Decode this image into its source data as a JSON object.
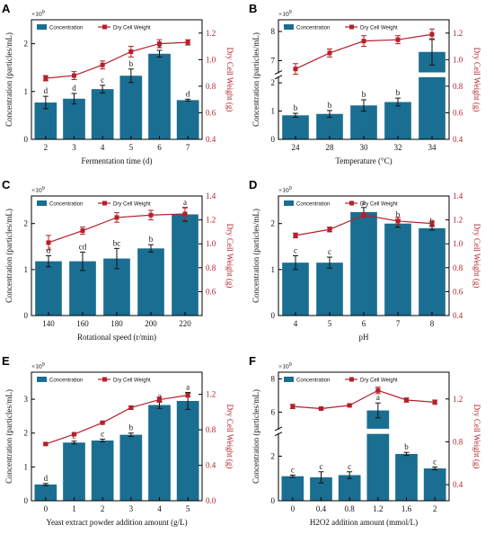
{
  "legend": {
    "bar": "Concentration",
    "line": "Dry Cell Weight"
  },
  "colors": {
    "bar": "#1a6e91",
    "line": "#b5202a",
    "axis": "#000000"
  },
  "axes_common": {
    "ylabel_left": "Concentration (particles/mL)",
    "ylabel_right": "Dry Cell Weight (g)",
    "exponent": "×10",
    "exponent_power": "9"
  },
  "chart_data": [
    {
      "panel": "A",
      "type": "bar",
      "xlabel": "Fermentation time (d)",
      "categories": [
        "2",
        "3",
        "4",
        "5",
        "6",
        "7"
      ],
      "bar_values": [
        0.77,
        0.85,
        1.05,
        1.33,
        1.79,
        0.82
      ],
      "bar_errors": [
        0.13,
        0.11,
        0.08,
        0.14,
        0.07,
        0.02
      ],
      "letters": [
        "d",
        "d",
        "c",
        "b",
        "a",
        "d"
      ],
      "line_values": [
        0.86,
        0.88,
        0.96,
        1.06,
        1.12,
        1.13
      ],
      "line_errors": [
        0.02,
        0.03,
        0.03,
        0.04,
        0.03,
        0.02
      ],
      "ylim_left": [
        0,
        2.5
      ],
      "yticks_left": [
        "0",
        "1",
        "2"
      ],
      "ytick_vals_left": [
        0,
        1,
        2
      ],
      "ylim_right": [
        0.4,
        1.3
      ],
      "yticks_right": [
        "0.4",
        "0.6",
        "0.8",
        "1.0",
        "1.2"
      ],
      "ytick_vals_right": [
        0.4,
        0.6,
        0.8,
        1.0,
        1.2
      ]
    },
    {
      "panel": "B",
      "type": "bar",
      "broken_axis": true,
      "xlabel": "Temperature (°C)",
      "categories": [
        "24",
        "28",
        "30",
        "32",
        "34"
      ],
      "bar_values": [
        0.85,
        0.9,
        1.2,
        1.32,
        7.3
      ],
      "bar_errors": [
        0.07,
        0.12,
        0.2,
        0.14,
        0.45
      ],
      "letters": [
        "b",
        "b",
        "b",
        "b",
        "a"
      ],
      "line_values": [
        0.93,
        1.05,
        1.14,
        1.15,
        1.19
      ],
      "line_errors": [
        0.04,
        0.03,
        0.04,
        0.03,
        0.04
      ],
      "lower_ylim_left": [
        0,
        2.2
      ],
      "lower_yticks_left": [
        "0",
        "1",
        "2"
      ],
      "lower_ytick_vals_left": [
        0,
        1,
        2
      ],
      "upper_ylim_left": [
        6.6,
        8.4
      ],
      "upper_yticks_left": [
        "7",
        "8"
      ],
      "upper_ytick_vals_left": [
        7,
        8
      ],
      "ylim_right": [
        0.4,
        1.3
      ],
      "yticks_right": [
        "0.4",
        "0.6",
        "0.8",
        "1.0",
        "1.2"
      ],
      "ytick_vals_right": [
        0.4,
        0.6,
        0.8,
        1.0,
        1.2
      ]
    },
    {
      "panel": "C",
      "type": "bar",
      "xlabel": "Rotational speed (r/min)",
      "categories": [
        "140",
        "160",
        "180",
        "200",
        "220"
      ],
      "bar_values": [
        1.18,
        1.18,
        1.24,
        1.46,
        2.2
      ],
      "bar_errors": [
        0.12,
        0.2,
        0.22,
        0.08,
        0.15
      ],
      "letters": [
        "d",
        "cd",
        "bc",
        "b",
        "a"
      ],
      "line_values": [
        1.01,
        1.11,
        1.22,
        1.24,
        1.25
      ],
      "line_errors": [
        0.06,
        0.03,
        0.04,
        0.04,
        0.05
      ],
      "ylim_left": [
        0,
        2.6
      ],
      "yticks_left": [
        "0",
        "1",
        "2"
      ],
      "ytick_vals_left": [
        0,
        1,
        2
      ],
      "ylim_right": [
        0.4,
        1.4
      ],
      "yticks_right": [
        "0.6",
        "0.8",
        "1.0",
        "1.2",
        "1.4"
      ],
      "ytick_vals_right": [
        0.6,
        0.8,
        1.0,
        1.2,
        1.4
      ]
    },
    {
      "panel": "D",
      "type": "bar",
      "xlabel": "pH",
      "categories": [
        "4",
        "5",
        "6",
        "7",
        "8"
      ],
      "bar_values": [
        1.15,
        1.15,
        2.25,
        2.0,
        1.9
      ],
      "bar_errors": [
        0.15,
        0.12,
        0.1,
        0.08,
        0.04
      ],
      "letters": [
        "c",
        "c",
        "a",
        "b",
        "b"
      ],
      "line_values": [
        1.07,
        1.12,
        1.24,
        1.19,
        1.17
      ],
      "line_errors": [
        0.02,
        0.02,
        0.02,
        0.03,
        0.02
      ],
      "ylim_left": [
        0,
        2.6
      ],
      "yticks_left": [
        "0",
        "1",
        "2"
      ],
      "ytick_vals_left": [
        0,
        1,
        2
      ],
      "ylim_right": [
        0.4,
        1.4
      ],
      "yticks_right": [
        "0.4",
        "0.6",
        "0.8",
        "1.0",
        "1.2",
        "1.4"
      ],
      "ytick_vals_right": [
        0.4,
        0.6,
        0.8,
        1.0,
        1.2,
        1.4
      ]
    },
    {
      "panel": "E",
      "type": "bar",
      "xlabel": "Yeast extract powder addition amount (g/L)",
      "categories": [
        "0",
        "1",
        "2",
        "3",
        "4",
        "5"
      ],
      "bar_values": [
        0.48,
        1.72,
        1.78,
        1.95,
        2.83,
        2.95
      ],
      "bar_errors": [
        0.03,
        0.04,
        0.04,
        0.05,
        0.1,
        0.25
      ],
      "letters": [
        "d",
        "c",
        "c",
        "b",
        "a",
        "a"
      ],
      "line_values": [
        0.64,
        0.75,
        0.88,
        1.05,
        1.14,
        1.19
      ],
      "line_errors": [
        0.01,
        0.01,
        0.01,
        0.02,
        0.03,
        0.02
      ],
      "ylim_left": [
        0,
        3.8
      ],
      "yticks_left": [
        "0",
        "1",
        "2",
        "3"
      ],
      "ytick_vals_left": [
        0,
        1,
        2,
        3
      ],
      "ylim_right": [
        0,
        1.45
      ],
      "yticks_right": [
        "0.0",
        "0.4",
        "0.8",
        "1.2"
      ],
      "ytick_vals_right": [
        0,
        0.4,
        0.8,
        1.2
      ]
    },
    {
      "panel": "F",
      "type": "bar",
      "broken_axis": true,
      "xlabel": "H2O2 addition amount (mmol/L)",
      "categories": [
        "0",
        "0.4",
        "0.8",
        "1.2",
        "1.6",
        "2"
      ],
      "bar_values": [
        1.1,
        1.05,
        1.15,
        6.1,
        2.1,
        1.45
      ],
      "bar_errors": [
        0.05,
        0.25,
        0.15,
        0.45,
        0.07,
        0.06
      ],
      "letters": [
        "c",
        "c",
        "c",
        "a",
        "b",
        "c"
      ],
      "line_values": [
        1.13,
        1.11,
        1.14,
        1.28,
        1.19,
        1.17
      ],
      "line_errors": [
        0.02,
        0.01,
        0.01,
        0.03,
        0.02,
        0.02
      ],
      "lower_ylim_left": [
        0,
        3.0
      ],
      "lower_yticks_left": [
        "0",
        "2"
      ],
      "lower_ytick_vals_left": [
        0,
        2
      ],
      "upper_ylim_left": [
        5.0,
        8.4
      ],
      "upper_yticks_left": [
        "6",
        "8"
      ],
      "upper_ytick_vals_left": [
        6,
        8
      ],
      "ylim_right": [
        0.25,
        1.45
      ],
      "yticks_right": [
        "0.4",
        "0.8",
        "1.2"
      ],
      "ytick_vals_right": [
        0.4,
        0.8,
        1.2
      ]
    }
  ]
}
